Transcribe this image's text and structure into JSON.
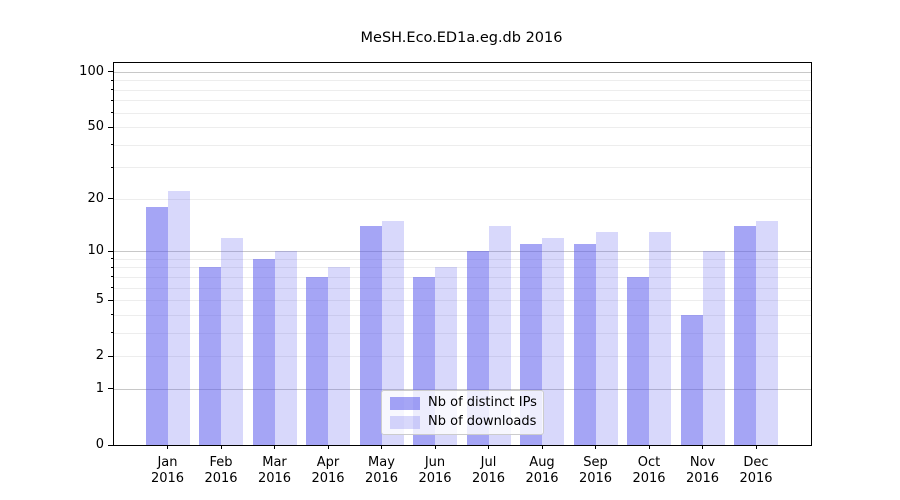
{
  "title": "MeSH.Eco.ED1a.eg.db 2016",
  "colors": {
    "distinct_ips": "#5B5BED8C",
    "downloads": "#5B5BED3D",
    "grid_major": "#c8c8c8",
    "grid_minor": "#ededed",
    "axis": "#000000",
    "legend_border": "#cccccc"
  },
  "chart_data": {
    "type": "bar",
    "title": "MeSH.Eco.ED1a.eg.db 2016",
    "categories": [
      "Jan",
      "Feb",
      "Mar",
      "Apr",
      "May",
      "Jun",
      "Jul",
      "Aug",
      "Sep",
      "Oct",
      "Nov",
      "Dec"
    ],
    "category_year": "2016",
    "series": [
      {
        "name": "Nb of distinct IPs",
        "color": "#5B5BED8C",
        "values": [
          18,
          8,
          9,
          7,
          14,
          7,
          10,
          11,
          11,
          7,
          4,
          14
        ]
      },
      {
        "name": "Nb of downloads",
        "color": "#5B5BED3D",
        "values": [
          22,
          12,
          10,
          8,
          15,
          8,
          14,
          12,
          13,
          13,
          10,
          15
        ]
      }
    ],
    "yscale": "log1p",
    "ylim": [
      0,
      112
    ],
    "xlabel": "",
    "ylabel": "",
    "y_tick_labels": [
      0,
      1,
      2,
      5,
      10,
      20,
      50,
      100
    ],
    "y_major_gridlines": [
      1,
      10,
      100
    ],
    "y_minor_gridlines": [
      2,
      3,
      4,
      5,
      6,
      7,
      8,
      9,
      20,
      30,
      40,
      50,
      60,
      70,
      80,
      90
    ],
    "grid": true,
    "legend_position": "lower center"
  }
}
